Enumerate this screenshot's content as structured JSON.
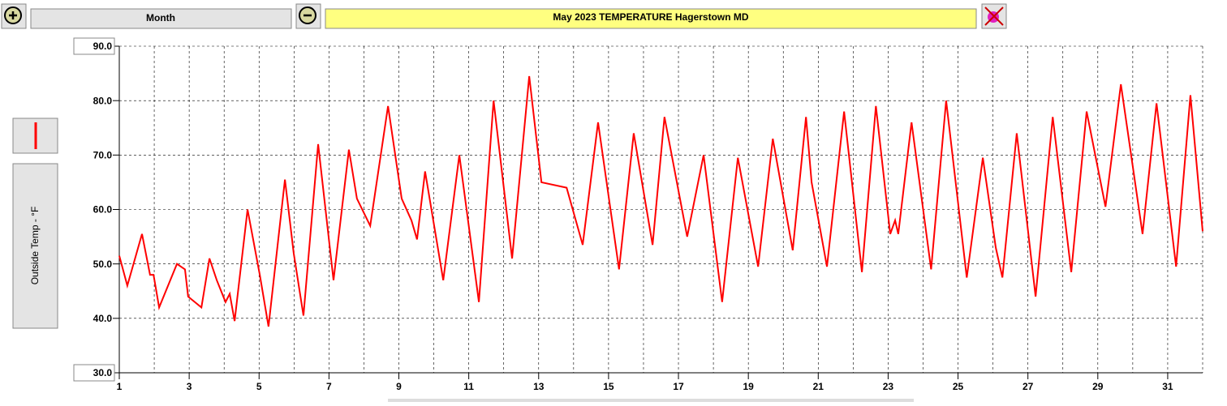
{
  "toolbar": {
    "period_button": "Month"
  },
  "chart_data": {
    "type": "line",
    "title": "May  2023  TEMPERATURE   Hagerstown MD",
    "x": [
      1,
      1.23,
      1.65,
      1.88,
      1.98,
      2.14,
      2.65,
      2.88,
      2.97,
      3.35,
      3.58,
      3.79,
      4.04,
      4.16,
      4.3,
      4.67,
      5.02,
      5.27,
      5.74,
      5.99,
      6.27,
      6.69,
      7.13,
      7.57,
      7.8,
      8.18,
      8.69,
      9.08,
      9.36,
      9.52,
      9.75,
      10.27,
      10.73,
      11.29,
      11.71,
      12.24,
      12.73,
      13.08,
      13.8,
      14.26,
      14.7,
      15.3,
      15.72,
      16.26,
      16.6,
      17.25,
      17.72,
      18.25,
      18.7,
      19.28,
      19.7,
      20.27,
      20.65,
      20.81,
      21.25,
      21.74,
      22.25,
      22.65,
      23.06,
      23.2,
      23.29,
      23.67,
      24.23,
      24.66,
      25.25,
      25.71,
      26.08,
      26.27,
      26.68,
      27.22,
      27.71,
      28.24,
      28.68,
      29.22,
      29.66,
      30.28,
      30.68,
      31.24,
      31.65,
      32
    ],
    "series": [
      {
        "name": "Outside Temp - °F",
        "color": "#ff0000",
        "values": [
          51.5,
          46,
          55.5,
          48,
          48,
          42,
          50,
          49,
          44,
          42,
          51,
          47,
          43,
          44.5,
          39.5,
          60,
          48,
          38.5,
          65.5,
          52,
          40.5,
          72,
          47,
          71,
          62,
          57,
          79,
          62,
          58,
          54.5,
          67,
          47,
          70,
          43,
          80,
          51,
          84.5,
          65,
          64,
          53.5,
          76,
          49,
          74,
          53.5,
          77,
          55,
          70,
          43,
          69.5,
          49.5,
          73,
          52.5,
          77,
          65,
          49.5,
          78,
          48.5,
          79,
          55.5,
          58,
          55.5,
          76,
          49,
          80,
          47.5,
          69.5,
          53,
          47.5,
          74,
          44,
          77,
          48.5,
          78,
          60.5,
          83,
          55.5,
          79.5,
          49.5,
          81,
          56
        ]
      }
    ],
    "xlim": [
      1,
      32
    ],
    "xticks": [
      1,
      3,
      5,
      7,
      9,
      11,
      13,
      15,
      17,
      19,
      21,
      23,
      25,
      27,
      29,
      31
    ],
    "ylim": [
      30,
      90
    ],
    "yticks": [
      {
        "value": 30,
        "label": "30.0"
      },
      {
        "value": 40,
        "label": "40.0"
      },
      {
        "value": 50,
        "label": "50.0"
      },
      {
        "value": 60,
        "label": "60.0"
      },
      {
        "value": 70,
        "label": "70.0"
      },
      {
        "value": 80,
        "label": "80.0"
      },
      {
        "value": 90,
        "label": "90.0"
      }
    ],
    "grid": true
  }
}
